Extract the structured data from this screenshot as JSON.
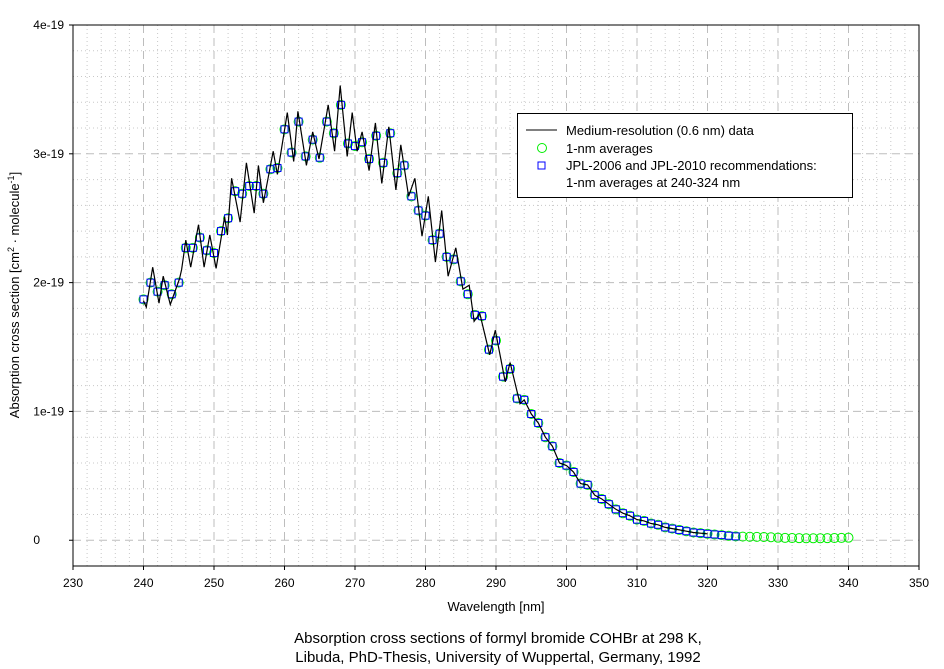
{
  "chart_data": {
    "type": "line",
    "title_lines": [
      "Absorption cross sections of formyl bromide COHBr at 298 K,",
      "Libuda, PhD-Thesis, University of Wuppertal, Germany, 1992"
    ],
    "xlabel": "Wavelength [nm]",
    "ylabel_parts": [
      "Absorption cross section [cm",
      "2",
      " · molecule",
      "-1",
      "]"
    ],
    "y_unit_scale": "1e-19",
    "xlim": [
      230,
      350
    ],
    "ylim": [
      -0.2,
      4.0
    ],
    "x_ticks": [
      230,
      240,
      250,
      260,
      270,
      280,
      290,
      300,
      310,
      320,
      330,
      340,
      350
    ],
    "x_tick_labels": [
      "230",
      "240",
      "250",
      "260",
      "270",
      "280",
      "290",
      "300",
      "310",
      "320",
      "330",
      "340",
      "350"
    ],
    "y_ticks": [
      0,
      1,
      2,
      3,
      4
    ],
    "y_tick_labels": [
      "0",
      "1e-19",
      "2e-19",
      "3e-19",
      "4e-19"
    ],
    "grid": true,
    "legend_position": "top-right",
    "legend": [
      {
        "label": "Medium-resolution (0.6 nm) data",
        "marker": "line",
        "color": "#000000"
      },
      {
        "label": "1-nm averages",
        "marker": "circle",
        "color": "#00ee00"
      },
      {
        "label": "JPL-2006 and JPL-2010 recommendations:",
        "label2": "1-nm averages at 240-324 nm",
        "marker": "square",
        "color": "#0000ff"
      }
    ],
    "series": [
      {
        "name": "Medium-resolution (0.6 nm) data",
        "points": [
          [
            240.0,
            1.86
          ],
          [
            240.4,
            1.81
          ],
          [
            241.3,
            2.12
          ],
          [
            242.2,
            1.84
          ],
          [
            242.8,
            2.05
          ],
          [
            243.8,
            1.83
          ],
          [
            245.1,
            2.03
          ],
          [
            245.4,
            2.1
          ],
          [
            246.0,
            2.33
          ],
          [
            246.7,
            2.12
          ],
          [
            247.8,
            2.45
          ],
          [
            248.6,
            2.12
          ],
          [
            249.4,
            2.37
          ],
          [
            250.3,
            2.11
          ],
          [
            251.5,
            2.51
          ],
          [
            251.9,
            2.37
          ],
          [
            252.5,
            2.81
          ],
          [
            253.7,
            2.47
          ],
          [
            254.6,
            2.93
          ],
          [
            255.7,
            2.54
          ],
          [
            256.3,
            2.91
          ],
          [
            257.0,
            2.62
          ],
          [
            258.4,
            3.02
          ],
          [
            259.0,
            2.84
          ],
          [
            260.4,
            3.32
          ],
          [
            261.3,
            2.94
          ],
          [
            261.9,
            3.33
          ],
          [
            263.1,
            2.91
          ],
          [
            264.0,
            3.17
          ],
          [
            264.9,
            2.96
          ],
          [
            266.2,
            3.38
          ],
          [
            267.1,
            3.02
          ],
          [
            267.9,
            3.53
          ],
          [
            268.9,
            2.98
          ],
          [
            269.6,
            3.32
          ],
          [
            270.3,
            3.02
          ],
          [
            271.0,
            3.17
          ],
          [
            272.0,
            2.87
          ],
          [
            272.9,
            3.24
          ],
          [
            273.8,
            2.77
          ],
          [
            274.8,
            3.21
          ],
          [
            275.8,
            2.72
          ],
          [
            276.5,
            3.07
          ],
          [
            277.6,
            2.67
          ],
          [
            278.5,
            2.81
          ],
          [
            279.5,
            2.36
          ],
          [
            280.4,
            2.67
          ],
          [
            281.4,
            2.16
          ],
          [
            282.3,
            2.56
          ],
          [
            283.2,
            2.05
          ],
          [
            284.3,
            2.27
          ],
          [
            285.3,
            1.95
          ],
          [
            286.2,
            1.98
          ],
          [
            286.9,
            1.7
          ],
          [
            287.7,
            1.76
          ],
          [
            289.1,
            1.44
          ],
          [
            289.9,
            1.63
          ],
          [
            291.3,
            1.23
          ],
          [
            292.0,
            1.38
          ],
          [
            293.4,
            1.06
          ],
          [
            294.0,
            1.09
          ],
          [
            295.0,
            0.98
          ],
          [
            296.0,
            0.91
          ],
          [
            297.0,
            0.8
          ],
          [
            298.0,
            0.73
          ],
          [
            299.0,
            0.6
          ],
          [
            300.0,
            0.58
          ],
          [
            301.0,
            0.53
          ],
          [
            302.0,
            0.44
          ],
          [
            303.0,
            0.43
          ],
          [
            304.0,
            0.35
          ],
          [
            305.0,
            0.32
          ],
          [
            306.0,
            0.28
          ],
          [
            307.0,
            0.24
          ],
          [
            308.0,
            0.21
          ],
          [
            309.0,
            0.19
          ],
          [
            310.0,
            0.16
          ],
          [
            311.0,
            0.15
          ],
          [
            312.0,
            0.13
          ],
          [
            313.0,
            0.12
          ],
          [
            314.0,
            0.1
          ],
          [
            315.0,
            0.09
          ],
          [
            316.0,
            0.08
          ],
          [
            317.0,
            0.07
          ],
          [
            318.0,
            0.06
          ],
          [
            319.0,
            0.055
          ],
          [
            320.0,
            0.05
          ]
        ]
      },
      {
        "name": "1-nm averages",
        "x_start": 240,
        "values": [
          1.87,
          2.0,
          1.93,
          1.98,
          1.91,
          2.0,
          2.27,
          2.27,
          2.35,
          2.25,
          2.23,
          2.4,
          2.5,
          2.71,
          2.69,
          2.75,
          2.75,
          2.69,
          2.88,
          2.89,
          3.19,
          3.01,
          3.25,
          2.98,
          3.11,
          2.97,
          3.25,
          3.16,
          3.38,
          3.08,
          3.06,
          3.09,
          2.96,
          3.14,
          2.93,
          3.16,
          2.85,
          2.91,
          2.67,
          2.56,
          2.52,
          2.33,
          2.38,
          2.2,
          2.18,
          2.01,
          1.91,
          1.75,
          1.74,
          1.48,
          1.55,
          1.27,
          1.33,
          1.1,
          1.09,
          0.98,
          0.91,
          0.8,
          0.73,
          0.6,
          0.58,
          0.53,
          0.44,
          0.43,
          0.35,
          0.32,
          0.28,
          0.24,
          0.21,
          0.19,
          0.16,
          0.15,
          0.13,
          0.12,
          0.1,
          0.09,
          0.08,
          0.07,
          0.06,
          0.055,
          0.05,
          0.045,
          0.04,
          0.035,
          0.03,
          0.028,
          0.027,
          0.026,
          0.025,
          0.023,
          0.02,
          0.018,
          0.017,
          0.016,
          0.015,
          0.015,
          0.015,
          0.016,
          0.017,
          0.018,
          0.02
        ]
      },
      {
        "name": "JPL-2006 and JPL-2010 recommendations",
        "x_start": 240,
        "values": [
          1.87,
          2.0,
          1.93,
          1.98,
          1.91,
          2.0,
          2.27,
          2.27,
          2.35,
          2.25,
          2.23,
          2.4,
          2.5,
          2.71,
          2.69,
          2.75,
          2.75,
          2.69,
          2.88,
          2.89,
          3.19,
          3.01,
          3.25,
          2.98,
          3.11,
          2.97,
          3.25,
          3.16,
          3.38,
          3.08,
          3.06,
          3.09,
          2.96,
          3.14,
          2.93,
          3.16,
          2.85,
          2.91,
          2.67,
          2.56,
          2.52,
          2.33,
          2.38,
          2.2,
          2.18,
          2.01,
          1.91,
          1.75,
          1.74,
          1.48,
          1.55,
          1.27,
          1.33,
          1.1,
          1.09,
          0.98,
          0.91,
          0.8,
          0.73,
          0.6,
          0.58,
          0.53,
          0.44,
          0.43,
          0.35,
          0.32,
          0.28,
          0.24,
          0.21,
          0.19,
          0.16,
          0.15,
          0.13,
          0.12,
          0.1,
          0.09,
          0.08,
          0.07,
          0.06,
          0.055,
          0.05,
          0.045,
          0.04,
          0.035,
          0.03
        ]
      }
    ]
  }
}
